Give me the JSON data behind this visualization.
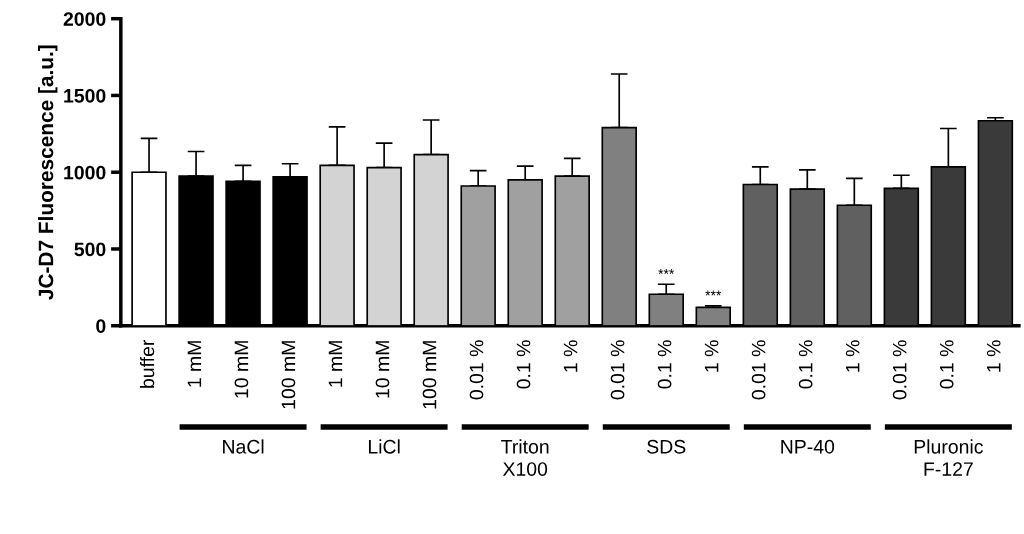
{
  "chart_data": {
    "type": "bar",
    "ylabel": "JC-D7 Fluorescence [a.u.]",
    "categories": [
      "buffer",
      "1 mM",
      "10 mM",
      "100 mM",
      "1 mM",
      "10 mM",
      "100 mM",
      "0.01 %",
      "0.1 %",
      "1 %",
      "0.01 %",
      "0.1 %",
      "1 %",
      "0.01 %",
      "0.1 %",
      "1 %",
      "0.01 %",
      "0.1 %",
      "1 %"
    ],
    "values": [
      1000,
      975,
      940,
      970,
      1045,
      1030,
      1115,
      910,
      950,
      975,
      1290,
      205,
      120,
      920,
      890,
      785,
      895,
      1035,
      1335
    ],
    "errors": [
      220,
      160,
      105,
      85,
      250,
      160,
      225,
      100,
      90,
      115,
      350,
      65,
      10,
      115,
      125,
      175,
      85,
      250,
      20
    ],
    "value_labels": [
      null,
      null,
      null,
      null,
      null,
      null,
      null,
      null,
      null,
      null,
      null,
      "***",
      "***",
      null,
      null,
      null,
      null,
      null,
      null
    ],
    "colors": [
      "#ffffff",
      "#000000",
      "#000000",
      "#000000",
      "#d3d3d3",
      "#d3d3d3",
      "#d3d3d3",
      "#a0a0a0",
      "#a0a0a0",
      "#a0a0a0",
      "#808080",
      "#808080",
      "#808080",
      "#606060",
      "#606060",
      "#606060",
      "#3a3a3a",
      "#3a3a3a",
      "#3a3a3a"
    ],
    "ylim": [
      0,
      2000
    ],
    "yticks": [
      0,
      500,
      1000,
      1500,
      2000
    ],
    "grid": false,
    "legend": false,
    "annotations": [
      "NaCl",
      "LiCl",
      "Triton\nX100",
      "SDS",
      "NP-40",
      "Pluronic\nF-127"
    ]
  }
}
